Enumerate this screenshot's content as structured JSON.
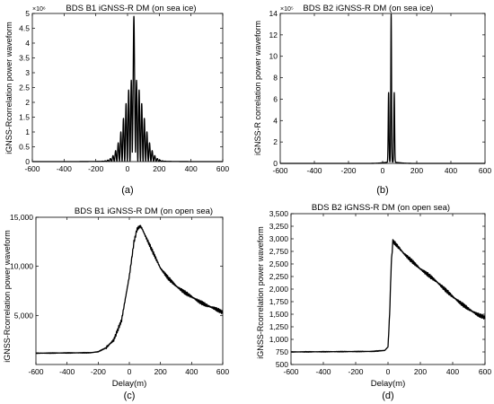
{
  "panels": [
    {
      "label": "(a)"
    },
    {
      "label": "(b)"
    },
    {
      "label": "(c)"
    },
    {
      "label": "(d)"
    }
  ],
  "chart_data": [
    {
      "type": "line",
      "title": "BDS B1 iGNSS-R DM (on sea ice)",
      "xlabel": "",
      "ylabel": "iGNSS-Rcorrelation power waveform",
      "xlim": [
        -600,
        600
      ],
      "ylim": [
        0,
        5
      ],
      "x_ticks": [
        -600,
        -400,
        -200,
        0,
        200,
        400,
        600
      ],
      "y_ticks": [
        0,
        0.5,
        1,
        1.5,
        2,
        2.5,
        3,
        3.5,
        4,
        4.5,
        5
      ],
      "y_tick_labels": [
        "0",
        "0.5",
        "1",
        "1.5",
        "2",
        "2.5",
        "3",
        "3.5",
        "4",
        "4.5",
        "5"
      ],
      "y_exponent": "×10⁶",
      "grid": false,
      "series": [
        {
          "shape": "oscillating_peak",
          "center": 40,
          "peak": 4.9,
          "envelope_width": 80,
          "period": 16.5
        }
      ]
    },
    {
      "type": "line",
      "title": "BDS B2 iGNSS-R DM (on sea ice)",
      "xlabel": "",
      "ylabel": "iGNSS-R correlation power waveform",
      "xlim": [
        -600,
        600
      ],
      "ylim": [
        0,
        14
      ],
      "x_ticks": [
        -600,
        -400,
        -200,
        0,
        200,
        400,
        600
      ],
      "y_ticks": [
        0,
        2,
        4,
        6,
        8,
        10,
        12,
        14
      ],
      "y_tick_labels": [
        "0",
        "2",
        "4",
        "6",
        "8",
        "10",
        "12",
        "14"
      ],
      "y_exponent": "×10⁵",
      "grid": false,
      "series": [
        {
          "shape": "narrow_peak",
          "center": 50,
          "peak": 13.8,
          "side_peaks": [
            [
              35,
              6.5
            ],
            [
              68,
              6.5
            ]
          ]
        }
      ]
    },
    {
      "type": "line",
      "title": "BDS B1 iGNSS-R DM (on open sea)",
      "xlabel": "Delay(m)",
      "ylabel": "iGNSS-Rcorrelation power waveform",
      "xlim": [
        -600,
        600
      ],
      "ylim": [
        0,
        15000
      ],
      "x_ticks": [
        -600,
        -400,
        -200,
        0,
        200,
        400,
        600
      ],
      "y_ticks": [
        5000,
        10000,
        15000
      ],
      "y_tick_labels": [
        "5,000",
        "10,000",
        "15,000"
      ],
      "y_exponent": "",
      "grid": false,
      "series": [
        {
          "shape": "waveform",
          "x": [
            -600,
            -250,
            -200,
            -150,
            -100,
            -50,
            0,
            30,
            50,
            70,
            80,
            100,
            150,
            200,
            250,
            300,
            350,
            400,
            450,
            500,
            550,
            600
          ],
          "y": [
            1150,
            1200,
            1300,
            1700,
            2500,
            4500,
            9000,
            12500,
            13800,
            14100,
            13900,
            13200,
            11500,
            9800,
            8800,
            8000,
            7400,
            6900,
            6400,
            6000,
            5700,
            5300
          ]
        }
      ]
    },
    {
      "type": "line",
      "title": "BDS B2 iGNSS-R DM (on open sea)",
      "xlabel": "Delay(m)",
      "ylabel": "iGNSS-Rcorrelation power waveform",
      "xlim": [
        -600,
        600
      ],
      "ylim": [
        500,
        3500
      ],
      "x_ticks": [
        -600,
        -400,
        -200,
        0,
        200,
        400,
        600
      ],
      "y_ticks": [
        500,
        750,
        1000,
        1250,
        1500,
        1750,
        2000,
        2250,
        2500,
        2750,
        3000,
        3250,
        3500
      ],
      "y_tick_labels": [
        "500",
        "750",
        "1,000",
        "1,250",
        "1,500",
        "1,750",
        "2,000",
        "2,250",
        "2,500",
        "2,750",
        "3,000",
        "3,250",
        "3,500"
      ],
      "y_exponent": "",
      "grid": false,
      "series": [
        {
          "shape": "waveform",
          "x": [
            -600,
            -100,
            -20,
            0,
            10,
            20,
            30,
            40,
            60,
            100,
            150,
            200,
            250,
            300,
            350,
            400,
            450,
            500,
            550,
            600
          ],
          "y": [
            750,
            760,
            780,
            850,
            1500,
            2500,
            2950,
            2920,
            2850,
            2700,
            2550,
            2400,
            2280,
            2150,
            2000,
            1850,
            1720,
            1600,
            1500,
            1430
          ]
        }
      ]
    }
  ]
}
